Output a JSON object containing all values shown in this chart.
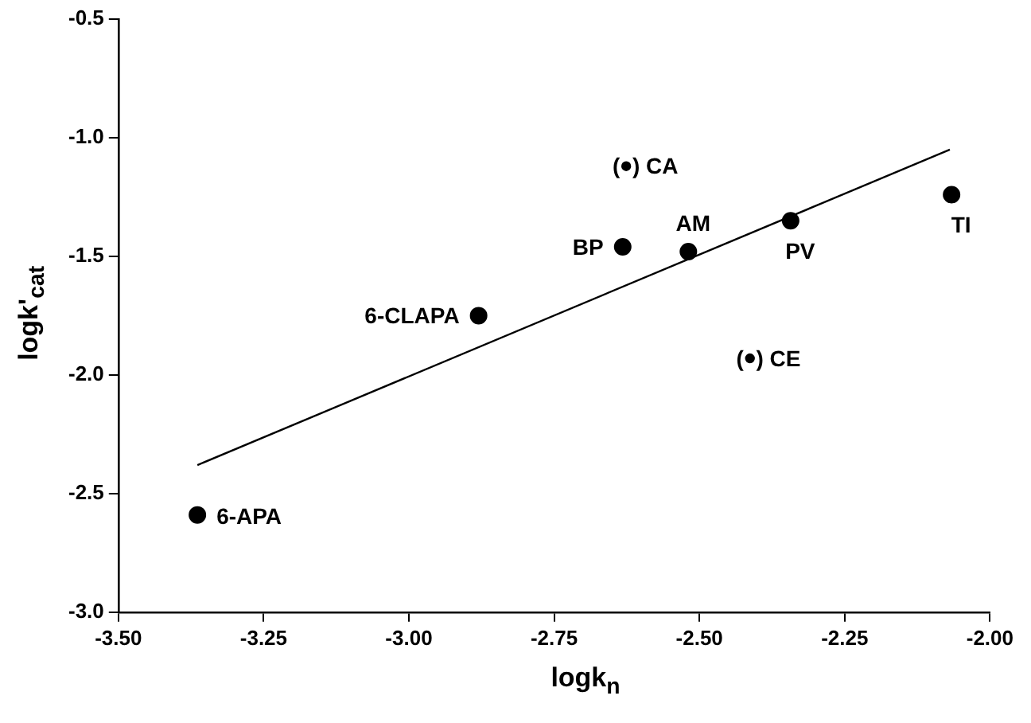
{
  "chart_data": {
    "type": "scatter",
    "xlabel": "logk$_{n}$",
    "ylabel": "logk'$_{cat}$",
    "series": [
      {
        "type": "scatter",
        "color": "#000000",
        "marker": "circle",
        "x": [
          -3.364,
          -2.88,
          -2.632,
          -2.519,
          -2.343,
          -2.066
        ],
        "values": [
          -2.59,
          -1.75,
          -1.46,
          -1.48,
          -1.35,
          -1.24
        ]
      },
      {
        "type": "scatter",
        "color": "#000000",
        "marker": "circle",
        "x": [
          -2.626,
          -2.413
        ],
        "values": [
          -1.12,
          -1.93
        ]
      },
      {
        "type": "line",
        "color": "#000000",
        "marker": "none",
        "x": [
          -3.364,
          -2.069
        ],
        "values": [
          -2.38,
          -1.05
        ]
      }
    ],
    "annotations": [
      {
        "text": "6-APA",
        "x": -3.364,
        "y": -2.59
      },
      {
        "text": "6-CLAPA",
        "x": -2.88,
        "y": -1.75
      },
      {
        "text": "BP",
        "x": -2.632,
        "y": -1.46
      },
      {
        "text": "AM",
        "x": -2.519,
        "y": -1.48
      },
      {
        "text": "PV",
        "x": -2.343,
        "y": -1.35
      },
      {
        "text": "TI",
        "x": -2.066,
        "y": -1.24
      },
      {
        "text": "(  ) CA",
        "x": -2.626,
        "y": -1.12
      },
      {
        "text": "(  ) CE",
        "x": -2.413,
        "y": -1.93
      }
    ],
    "xlim": [
      -3.5,
      -2.0
    ],
    "xticks": [
      {
        "value": -3.5,
        "label": "-3.50"
      },
      {
        "value": -3.25,
        "label": "-3.25"
      },
      {
        "value": -3.0,
        "label": "-3.00"
      },
      {
        "value": -2.75,
        "label": "-2.75"
      },
      {
        "value": -2.5,
        "label": "-2.50"
      },
      {
        "value": -2.25,
        "label": "-2.25"
      },
      {
        "value": -2.0,
        "label": "-2.00"
      }
    ],
    "ylim": [
      -3.0,
      -0.5
    ],
    "yticks": [
      {
        "value": -3.0,
        "label": "-3.0"
      },
      {
        "value": -2.5,
        "label": "-2.5"
      },
      {
        "value": -2.0,
        "label": "-2.0"
      },
      {
        "value": -1.5,
        "label": "-1.5"
      },
      {
        "value": -1.0,
        "label": "-1.0"
      },
      {
        "value": -0.5,
        "label": "-0.5"
      }
    ],
    "grid": false,
    "legend": false
  }
}
